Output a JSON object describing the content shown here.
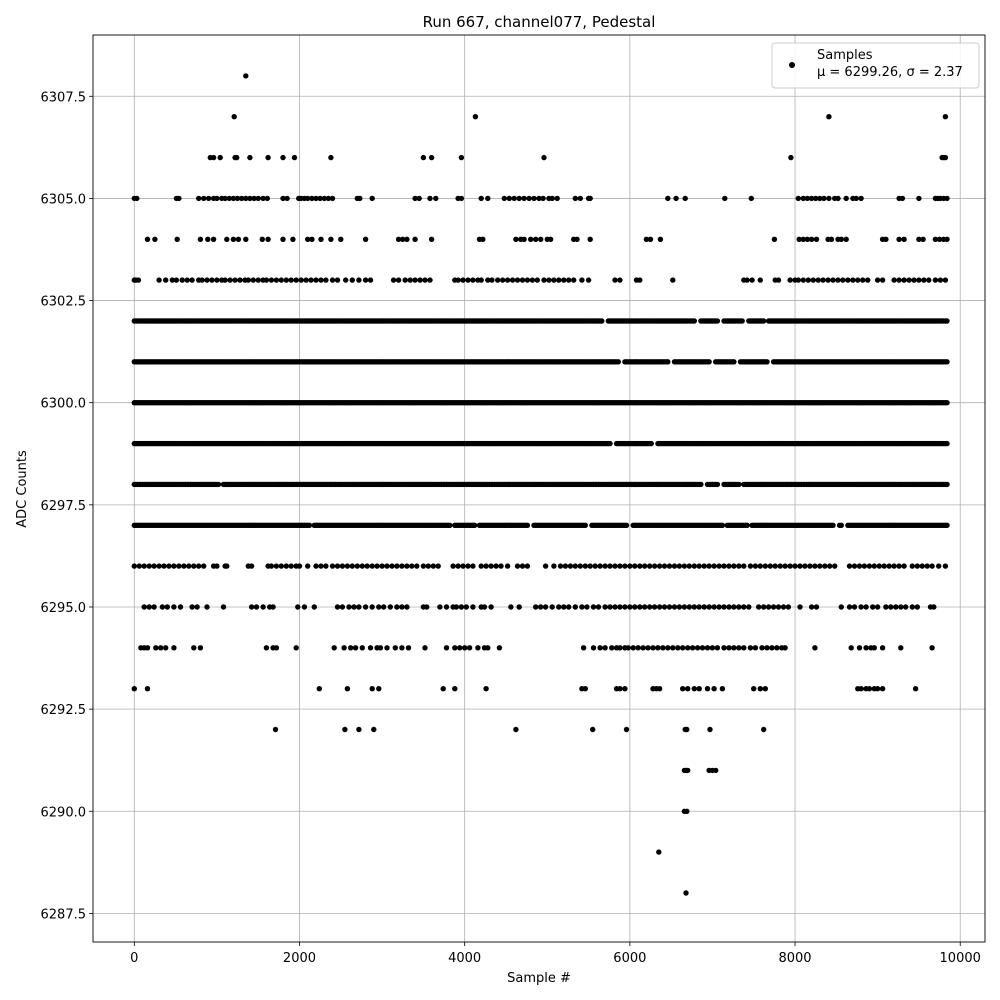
{
  "chart_data": {
    "type": "scatter",
    "title": "Run 667, channel077, Pedestal",
    "xlabel": "Sample #",
    "ylabel": "ADC Counts",
    "xlim": [
      -500,
      10300
    ],
    "ylim": [
      6286.8,
      6309.0
    ],
    "xticks": [
      0,
      2000,
      4000,
      6000,
      8000,
      10000
    ],
    "yticks": [
      6287.5,
      6290.0,
      6292.5,
      6295.0,
      6297.5,
      6300.0,
      6302.5,
      6305.0,
      6307.5
    ],
    "xtick_labels": [
      "0",
      "2000",
      "4000",
      "6000",
      "8000",
      "10000"
    ],
    "ytick_labels": [
      "6287.5",
      "6290.0",
      "6292.5",
      "6295.0",
      "6297.5",
      "6300.0",
      "6302.5",
      "6305.0",
      "6307.5"
    ],
    "grid": true,
    "legend_position": "top-right",
    "marker_color": "#000000",
    "series": [
      {
        "name": "Samples",
        "legend_line2": "μ = 6299.26, σ = 2.37",
        "n_samples": 9850,
        "level_points": [
          {
            "y": 6308,
            "x": [
              1350
            ]
          },
          {
            "y": 6307,
            "x": [
              1210,
              4130,
              8410,
              9820
            ]
          },
          {
            "y": 6306,
            "x": [
              920,
              960,
              1040,
              1220,
              1240,
              1400,
              1620,
              1800,
              1940,
              2380,
              3500,
              3600,
              3960,
              4960,
              7950,
              9780,
              9800,
              9820
            ]
          },
          {
            "y": 6305,
            "x": [
              0,
              30,
              510,
              540,
              780,
              840,
              900,
              960,
              1000,
              1060,
              1100,
              1150,
              1200,
              1250,
              1300,
              1350,
              1400,
              1450,
              1500,
              1560,
              1610,
              1800,
              1850,
              1990,
              2020,
              2060,
              2100,
              2150,
              2200,
              2250,
              2300,
              2350,
              2400,
              2700,
              2730,
              2880,
              3400,
              3450,
              3580,
              3650,
              3920,
              3960,
              4200,
              4280,
              4480,
              4540,
              4600,
              4660,
              4720,
              4780,
              4840,
              4900,
              4950,
              5020,
              5060,
              5120,
              5340,
              5400,
              5500,
              5520,
              6460,
              6560,
              6670,
              7150,
              7470,
              8040,
              8100,
              8150,
              8200,
              8250,
              8300,
              8350,
              8410,
              8480,
              8520,
              8620,
              8700,
              8740,
              8800,
              9260,
              9300,
              9500,
              9700,
              9730,
              9760,
              9800,
              9840
            ]
          },
          {
            "y": 6304,
            "x": [
              160,
              250,
              520,
              800,
              890,
              960,
              1120,
              1200,
              1260,
              1350,
              1550,
              1620,
              1800,
              1920,
              2100,
              2150,
              2260,
              2380,
              2500,
              2800,
              3200,
              3250,
              3300,
              3400,
              3600,
              4180,
              4220,
              4620,
              4680,
              4720,
              4800,
              4860,
              4920,
              5000,
              5040,
              5320,
              5360,
              5520,
              6200,
              6250,
              6370,
              7750,
              8050,
              8100,
              8150,
              8200,
              8260,
              8400,
              8440,
              8520,
              8560,
              8620,
              9060,
              9100,
              9260,
              9320,
              9500,
              9550,
              9700,
              9750,
              9800,
              9840
            ]
          },
          {
            "y": 6303,
            "x": [
              0,
              20,
              50,
              300,
              380,
              460,
              510,
              580,
              640,
              700,
              780,
              820,
              880,
              940,
              1000,
              1060,
              1100,
              1160,
              1220,
              1280,
              1340,
              1380,
              1440,
              1500,
              1560,
              1600,
              1660,
              1720,
              1780,
              1840,
              1900,
              1960,
              2020,
              2080,
              2140,
              2200,
              2260,
              2320,
              2400,
              2460,
              2560,
              2640,
              2720,
              2800,
              2860,
              3140,
              3200,
              3280,
              3340,
              3400,
              3460,
              3520,
              3580,
              3880,
              3920,
              3980,
              4040,
              4100,
              4160,
              4200,
              4280,
              4330,
              4400,
              4460,
              4520,
              4580,
              4640,
              4700,
              4760,
              4820,
              4880,
              4960,
              5020,
              5080,
              5140,
              5200,
              5260,
              5320,
              5420,
              5500,
              5820,
              5880,
              6080,
              6120,
              6520,
              7380,
              7420,
              7480,
              7580,
              7760,
              7800,
              7940,
              8000,
              8040,
              8100,
              8160,
              8220,
              8280,
              8340,
              8400,
              8460,
              8520,
              8580,
              8640,
              8700,
              8760,
              8820,
              8880,
              9000,
              9060,
              9200,
              9260,
              9320,
              9380,
              9440,
              9500,
              9560,
              9620,
              9700,
              9760,
              9820
            ]
          },
          {
            "y": 6302,
            "range": [
              0,
              9850
            ],
            "gap_x": [
              5700,
              6820,
              7100,
              7400,
              7650
            ]
          },
          {
            "y": 6301,
            "range": [
              0,
              9850
            ],
            "gap_x": [
              5900,
              6500,
              7000,
              7300,
              7700
            ]
          },
          {
            "y": 6300,
            "range": [
              0,
              9850
            ],
            "gap_x": []
          },
          {
            "y": 6299,
            "range": [
              0,
              9850
            ],
            "gap_x": [
              5800,
              6300
            ]
          },
          {
            "y": 6298,
            "range": [
              0,
              9850
            ],
            "gap_x": [
              1050,
              6900,
              7100,
              7350
            ]
          },
          {
            "y": 6297,
            "range": [
              0,
              9850
            ],
            "gap_x": [
              2150,
              3850,
              4150,
              4800,
              5500,
              6000,
              7150,
              7450,
              8500,
              8600
            ]
          },
          {
            "y": 6296,
            "x": [
              0,
              60,
              120,
              180,
              240,
              300,
              360,
              420,
              480,
              540,
              600,
              660,
              720,
              780,
              840,
              960,
              1000,
              1100,
              1120,
              1380,
              1420,
              1620,
              1660,
              1720,
              1780,
              1840,
              1900,
              1960,
              2000,
              2100,
              2200,
              2260,
              2320,
              2400,
              2460,
              2520,
              2580,
              2640,
              2700,
              2760,
              2820,
              2880,
              2940,
              3000,
              3060,
              3120,
              3180,
              3240,
              3300,
              3360,
              3420,
              3500,
              3560,
              3620,
              3680,
              3860,
              3920,
              3980,
              4040,
              4100,
              4200,
              4260,
              4320,
              4380,
              4440,
              4520,
              4640,
              4700,
              4760,
              4980,
              5080,
              5160,
              5220,
              5280,
              5340,
              5400,
              5460,
              5520,
              5580,
              5640,
              5700,
              5760,
              5820,
              5880,
              5940,
              6000,
              6060,
              6120,
              6180,
              6240,
              6300,
              6360,
              6420,
              6480,
              6540,
              6600,
              6660,
              6720,
              6780,
              6840,
              6900,
              6960,
              7020,
              7080,
              7140,
              7200,
              7260,
              7320,
              7380,
              7460,
              7520,
              7580,
              7640,
              7700,
              7760,
              7820,
              7880,
              7940,
              8000,
              8060,
              8120,
              8180,
              8240,
              8300,
              8360,
              8420,
              8480,
              8660,
              8720,
              8780,
              8840,
              8900,
              8960,
              9020,
              9080,
              9140,
              9200,
              9260,
              9320,
              9420,
              9480,
              9540,
              9600,
              9660,
              9740,
              9820
            ]
          },
          {
            "y": 6295,
            "x": [
              120,
              180,
              240,
              340,
              400,
              480,
              560,
              700,
              760,
              880,
              1080,
              1420,
              1480,
              1560,
              1640,
              1680,
              1980,
              2060,
              2180,
              2460,
              2520,
              2600,
              2660,
              2720,
              2800,
              2880,
              2960,
              3020,
              3100,
              3180,
              3240,
              3300,
              3500,
              3540,
              3700,
              3780,
              3860,
              3900,
              3960,
              4020,
              4100,
              4200,
              4240,
              4320,
              4560,
              4660,
              4860,
              4920,
              4980,
              5060,
              5140,
              5200,
              5260,
              5340,
              5420,
              5480,
              5560,
              5620,
              5700,
              5760,
              5820,
              5880,
              5940,
              6000,
              6060,
              6120,
              6180,
              6240,
              6300,
              6360,
              6420,
              6480,
              6540,
              6600,
              6660,
              6720,
              6780,
              6840,
              6900,
              6960,
              7020,
              7080,
              7140,
              7200,
              7260,
              7320,
              7380,
              7440,
              7560,
              7620,
              7680,
              7740,
              7800,
              7860,
              7920,
              8060,
              8200,
              8260,
              8560,
              8660,
              8720,
              8800,
              8860,
              8940,
              9000,
              9100,
              9160,
              9220,
              9280,
              9340,
              9420,
              9480,
              9640,
              9680
            ]
          },
          {
            "y": 6294,
            "x": [
              80,
              120,
              160,
              260,
              320,
              380,
              480,
              720,
              800,
              1600,
              1680,
              1720,
              1960,
              2420,
              2540,
              2620,
              2680,
              2760,
              2860,
              2940,
              2980,
              3060,
              3160,
              3240,
              3320,
              3520,
              3780,
              3880,
              3940,
              4000,
              4060,
              4160,
              4240,
              4280,
              4420,
              5440,
              5560,
              5640,
              5700,
              5780,
              5840,
              5880,
              5940,
              5980,
              6040,
              6100,
              6160,
              6220,
              6280,
              6340,
              6400,
              6460,
              6520,
              6580,
              6640,
              6700,
              6760,
              6820,
              6880,
              6940,
              7000,
              7060,
              7140,
              7200,
              7260,
              7320,
              7380,
              7460,
              7520,
              7600,
              7660,
              7720,
              7780,
              7840,
              7880,
              8240,
              8680,
              8780,
              8860,
              8920,
              8960,
              9060,
              9280,
              9660
            ]
          },
          {
            "y": 6293,
            "x": [
              0,
              160,
              2240,
              2580,
              2880,
              2960,
              3740,
              3880,
              4260,
              5420,
              5460,
              5840,
              5880,
              5940,
              6280,
              6320,
              6360,
              6640,
              6700,
              6780,
              6840,
              6940,
              7020,
              7120,
              7500,
              7580,
              7640,
              8760,
              8800,
              8860,
              8900,
              8960,
              9000,
              9060,
              9460
            ]
          },
          {
            "y": 6292,
            "x": [
              1710,
              2550,
              2720,
              2900,
              4620,
              5550,
              5960,
              6670,
              6690,
              6970,
              7620
            ]
          },
          {
            "y": 6291,
            "x": [
              6660,
              6680,
              6700,
              6960,
              7000,
              7040
            ]
          },
          {
            "y": 6290,
            "x": [
              6660,
              6690
            ]
          },
          {
            "y": 6289,
            "x": [
              6350
            ]
          },
          {
            "y": 6288,
            "x": [
              6680
            ]
          }
        ]
      }
    ]
  }
}
